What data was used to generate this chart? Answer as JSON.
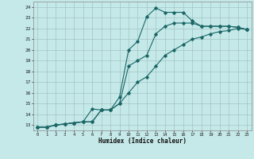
{
  "xlabel": "Humidex (Indice chaleur)",
  "xlim": [
    -0.5,
    23.5
  ],
  "ylim": [
    12.5,
    24.5
  ],
  "xticks": [
    0,
    1,
    2,
    3,
    4,
    5,
    6,
    7,
    8,
    9,
    10,
    11,
    12,
    13,
    14,
    15,
    16,
    17,
    18,
    19,
    20,
    21,
    22,
    23
  ],
  "yticks": [
    13,
    14,
    15,
    16,
    17,
    18,
    19,
    20,
    21,
    22,
    23,
    24
  ],
  "bg_color": "#c5e8e8",
  "line_color": "#1a6666",
  "grid_color": "#9bbcbc",
  "curve1_x": [
    0,
    1,
    2,
    3,
    4,
    5,
    6,
    7,
    8,
    9,
    10,
    11,
    12,
    13,
    14,
    15,
    16,
    17,
    18,
    19,
    20,
    21,
    22,
    23
  ],
  "curve1_y": [
    12.8,
    12.8,
    13.0,
    13.1,
    13.2,
    13.3,
    14.5,
    14.4,
    14.4,
    15.6,
    20.0,
    20.8,
    23.1,
    23.9,
    23.5,
    23.5,
    23.5,
    22.7,
    22.2,
    22.2,
    22.2,
    22.2,
    22.1,
    21.9
  ],
  "curve2_x": [
    0,
    1,
    2,
    3,
    4,
    5,
    6,
    7,
    8,
    9,
    10,
    11,
    12,
    13,
    14,
    15,
    16,
    17,
    18,
    19,
    20,
    21,
    22,
    23
  ],
  "curve2_y": [
    12.8,
    12.8,
    13.0,
    13.1,
    13.2,
    13.3,
    13.3,
    14.4,
    14.4,
    15.0,
    18.5,
    19.0,
    19.5,
    21.5,
    22.2,
    22.5,
    22.5,
    22.5,
    22.2,
    22.2,
    22.2,
    22.2,
    22.1,
    21.9
  ],
  "curve3_x": [
    0,
    1,
    2,
    3,
    4,
    5,
    6,
    7,
    8,
    9,
    10,
    11,
    12,
    13,
    14,
    15,
    16,
    17,
    18,
    19,
    20,
    21,
    22,
    23
  ],
  "curve3_y": [
    12.8,
    12.8,
    13.0,
    13.1,
    13.2,
    13.3,
    13.3,
    14.4,
    14.4,
    15.0,
    16.0,
    17.0,
    17.5,
    18.5,
    19.5,
    20.0,
    20.5,
    21.0,
    21.2,
    21.5,
    21.7,
    21.8,
    22.0,
    21.9
  ]
}
